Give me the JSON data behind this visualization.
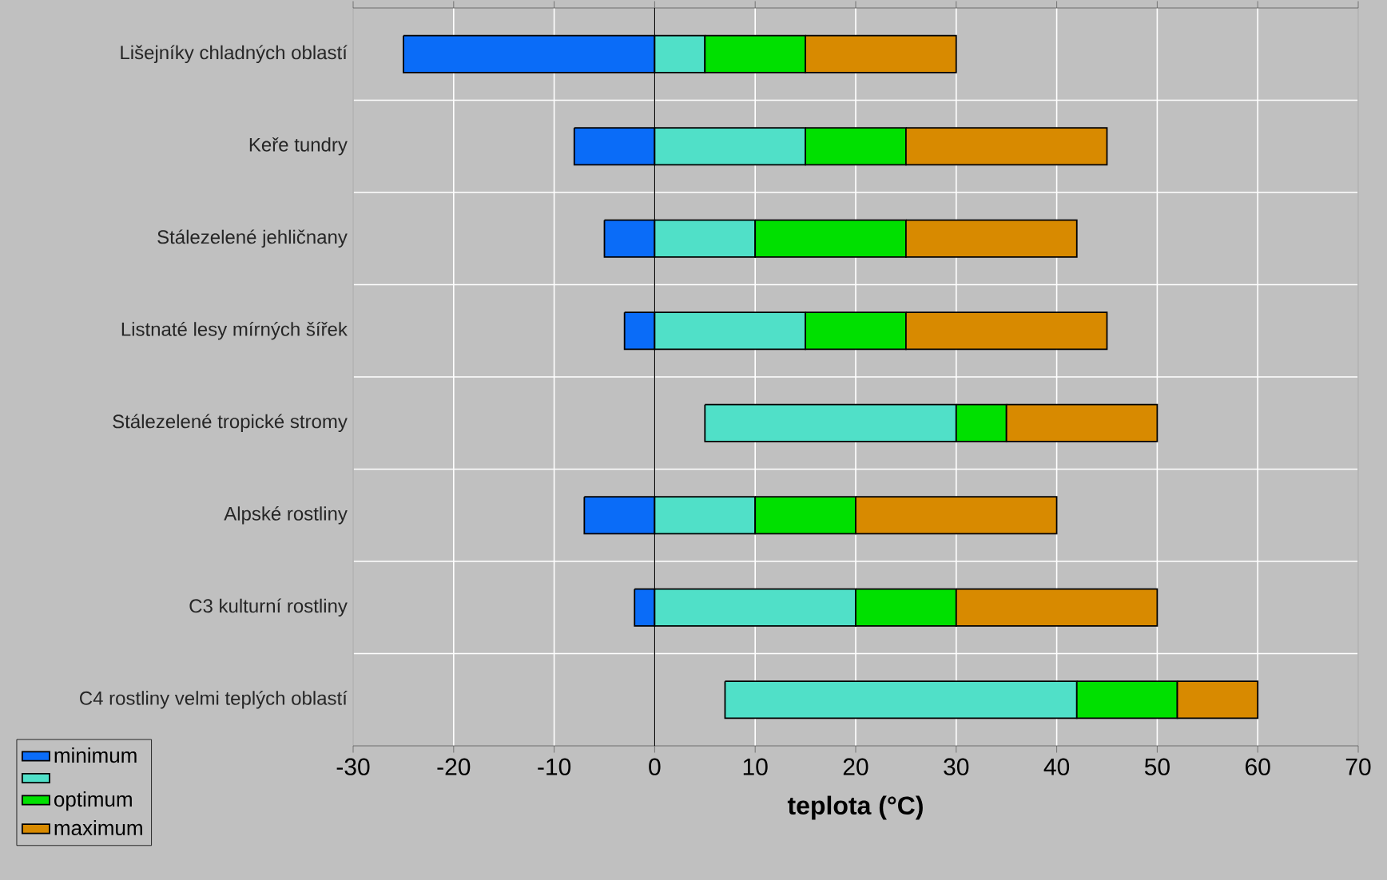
{
  "chart_data": {
    "type": "bar",
    "orientation": "horizontal",
    "xlabel": "teplota (°C)",
    "categories": [
      "Lišejníky chladných oblastí",
      "Keře tundry",
      "Stálezelené jehličnany",
      "Listnaté lesy mírných šířek",
      "Stálezelené tropické stromy",
      "Alpské rostliny",
      "C3 kulturní rostliny",
      "C4 rostliny velmi teplých oblastí"
    ],
    "series": [
      {
        "name": "minimum",
        "color": "#0a6cf8",
        "base": [
          -25,
          -8,
          -5,
          -3,
          null,
          -7,
          -2,
          null
        ],
        "values": [
          25,
          8,
          5,
          3,
          null,
          7,
          2,
          null
        ]
      },
      {
        "color": "#50e0c8",
        "base": [
          0,
          0,
          0,
          0,
          5,
          0,
          0,
          7
        ],
        "values": [
          5,
          15,
          10,
          15,
          25,
          10,
          20,
          35
        ]
      },
      {
        "name": "optimum",
        "color": "#00e000",
        "base": [
          5,
          15,
          10,
          15,
          30,
          10,
          20,
          42
        ],
        "values": [
          10,
          10,
          15,
          10,
          5,
          10,
          10,
          10
        ]
      },
      {
        "name": "maximum",
        "color": "#d88a00",
        "base": [
          15,
          25,
          25,
          25,
          35,
          20,
          30,
          52
        ],
        "values": [
          15,
          20,
          17,
          20,
          15,
          20,
          20,
          8
        ]
      }
    ],
    "xlim": [
      -30,
      70
    ],
    "xticks": [
      -30,
      -20,
      -10,
      0,
      10,
      20,
      30,
      40,
      50,
      60,
      70
    ],
    "grid": true,
    "legend": "bottom left"
  }
}
